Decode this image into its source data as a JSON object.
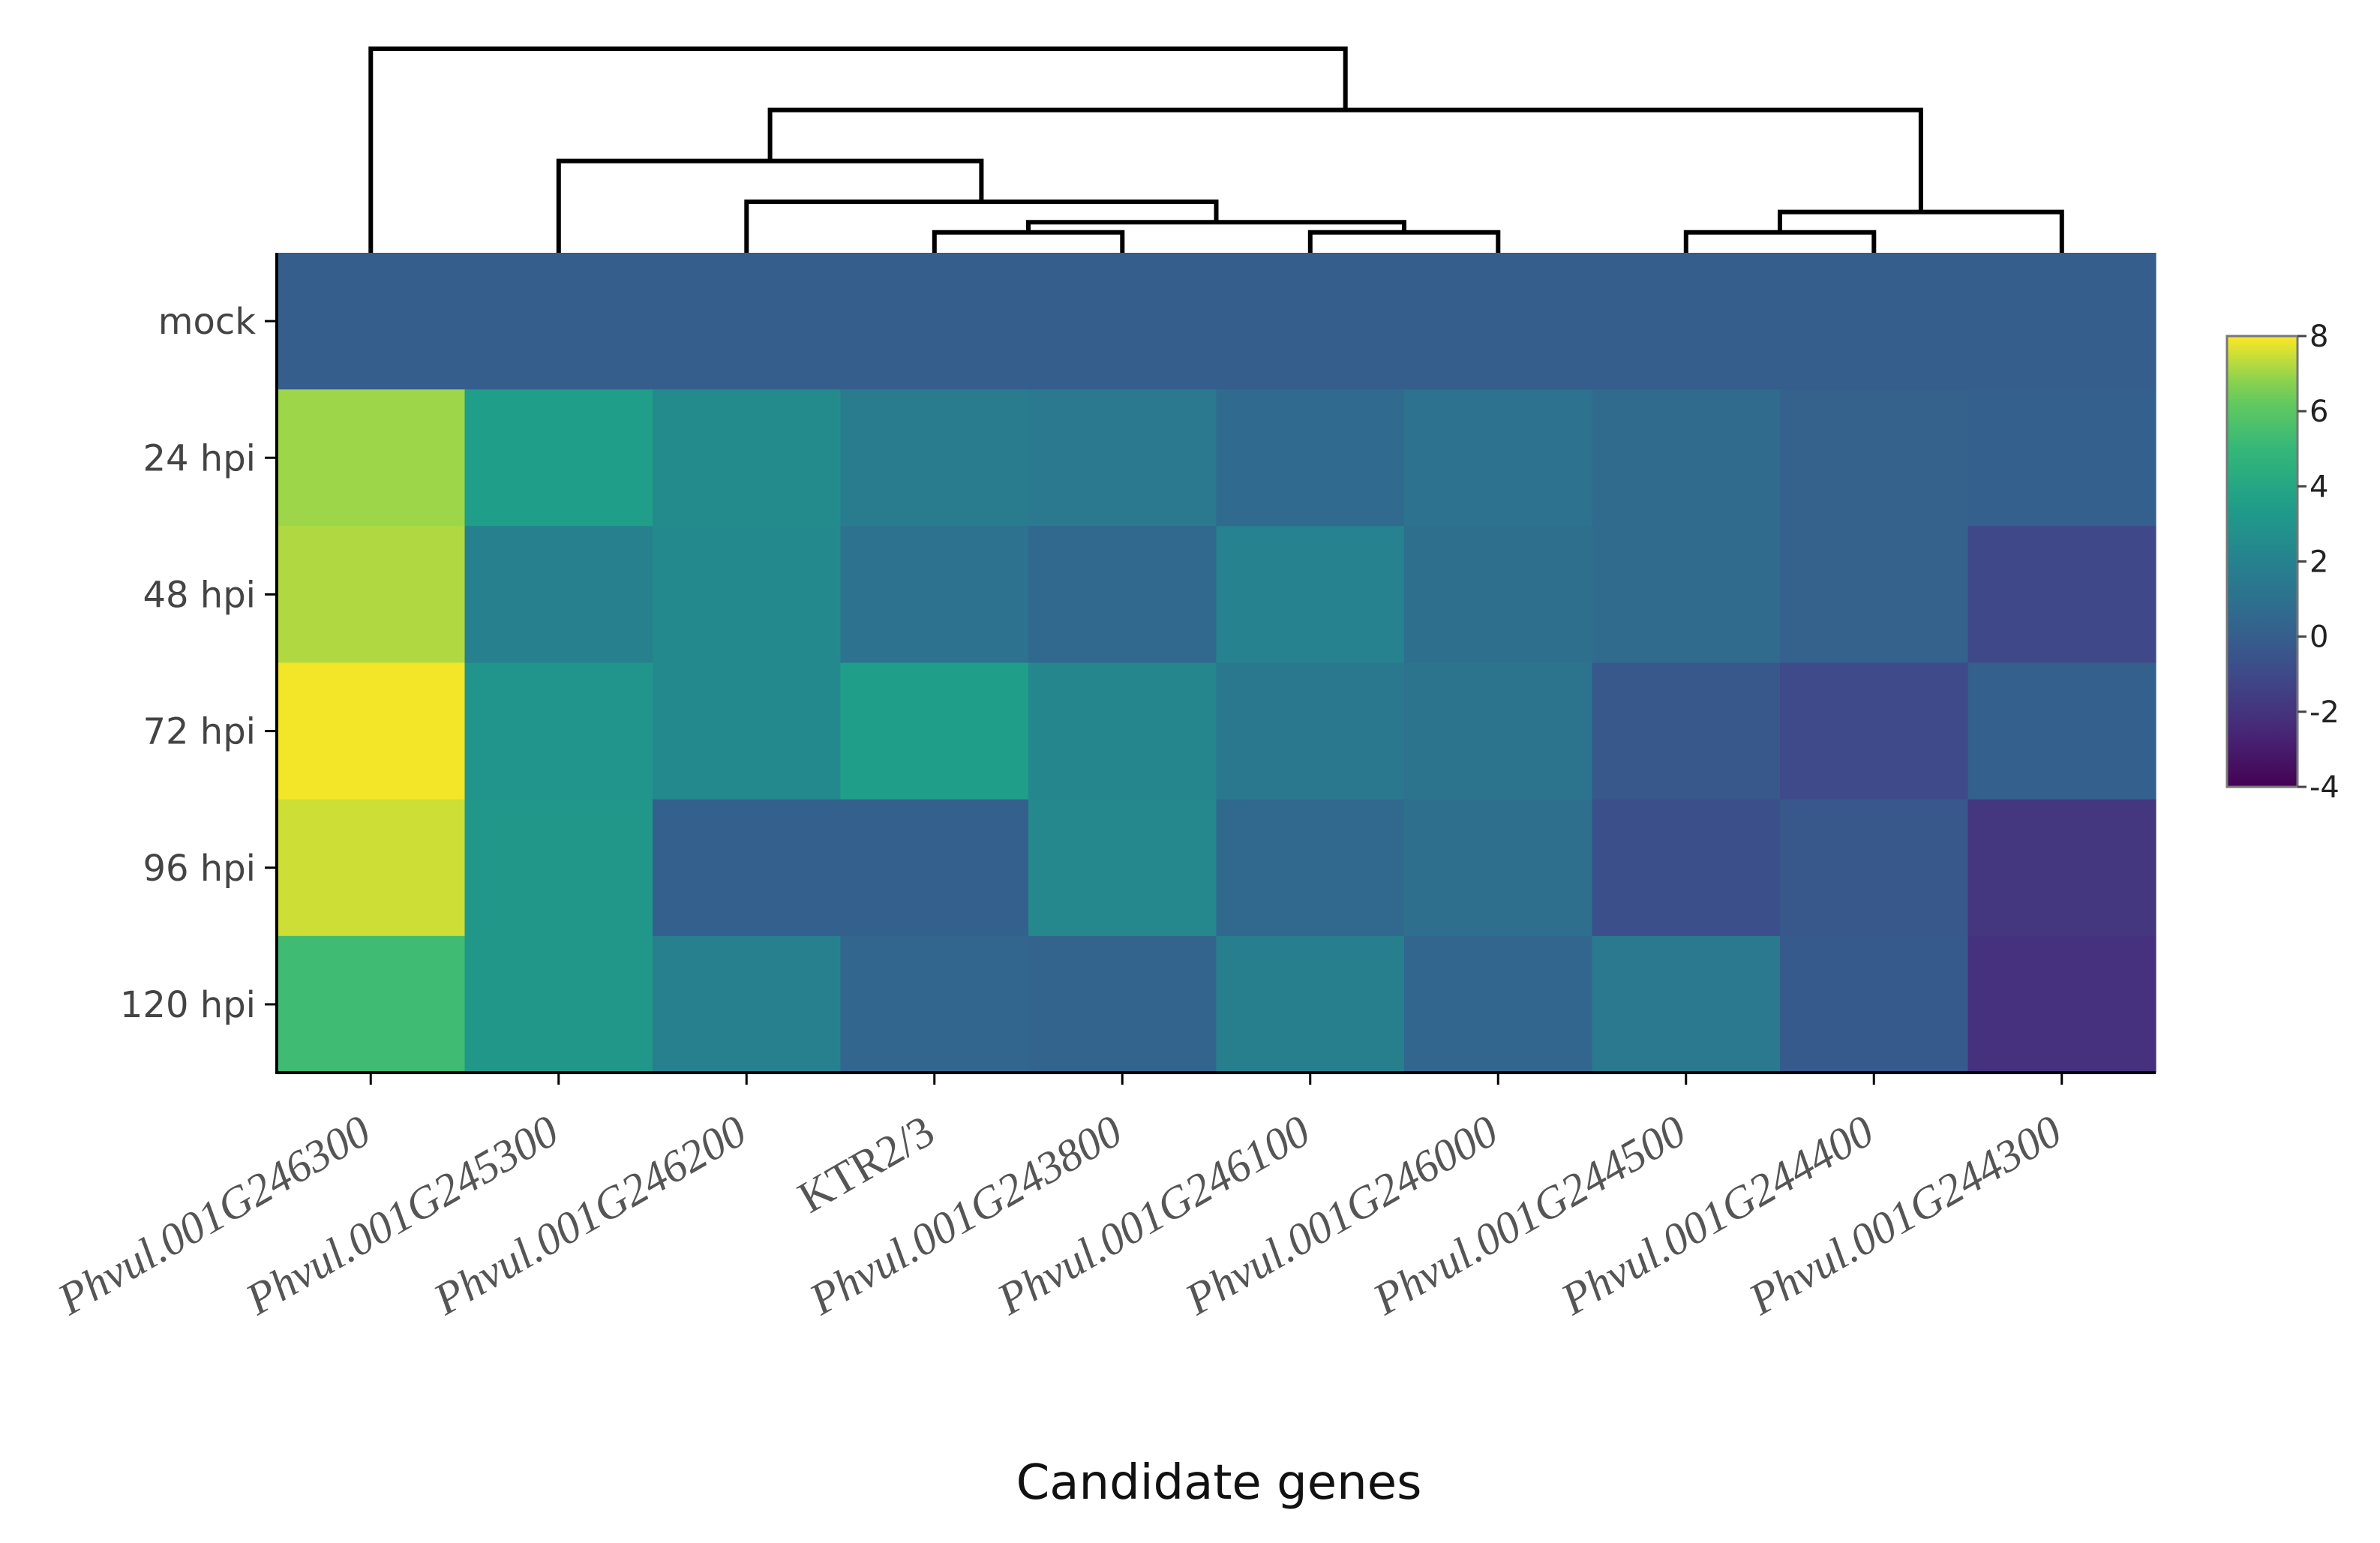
{
  "chart_data": {
    "type": "heatmap",
    "title": "",
    "xlabel": "Candidate genes",
    "ylabel": "",
    "rows": [
      "mock",
      "24 hpi",
      "48 hpi",
      "72 hpi",
      "96 hpi",
      "120 hpi"
    ],
    "columns": [
      "Phvul.001G246300",
      "Phvul.001G245300",
      "Phvul.001G246200",
      "KTR2/3",
      "Phvul.001G243800",
      "Phvul.001G246100",
      "Phvul.001G246000",
      "Phvul.001G244500",
      "Phvul.001G244400",
      "Phvul.001G244300"
    ],
    "italic_columns": [
      true,
      true,
      true,
      false,
      true,
      true,
      true,
      true,
      true,
      true
    ],
    "values": [
      [
        0,
        0,
        0,
        0,
        0,
        0,
        0,
        0,
        0,
        0
      ],
      [
        7,
        3.5,
        2.5,
        1.6,
        1.5,
        0.6,
        1.1,
        0.7,
        0.2,
        0.1
      ],
      [
        7.2,
        1.9,
        2.4,
        1.1,
        0.5,
        2.0,
        0.9,
        0.7,
        0.2,
        -1.1
      ],
      [
        7.9,
        3.0,
        2.4,
        3.5,
        2.2,
        1.4,
        1.2,
        -0.3,
        -1.0,
        0.1
      ],
      [
        7.5,
        3.1,
        0.1,
        0.1,
        2.3,
        0.5,
        0.9,
        -0.7,
        -0.3,
        -1.9
      ],
      [
        5.3,
        3.1,
        1.9,
        0.4,
        0.3,
        1.8,
        0.4,
        1.5,
        -0.2,
        -2.1
      ]
    ],
    "colorbar": {
      "min": -4,
      "max": 8,
      "ticks": [
        -4,
        -2,
        0,
        2,
        4,
        6,
        8
      ],
      "colorscale": "viridis"
    },
    "dendrogram": {
      "type": "column",
      "merges": [
        [
          3,
          4,
          0.1
        ],
        [
          5,
          6,
          0.1
        ],
        [
          7,
          8,
          0.1
        ],
        [
          -1,
          -2,
          0.15
        ],
        [
          2,
          -4,
          0.25
        ],
        [
          -3,
          9,
          0.2
        ],
        [
          1,
          -5,
          0.45
        ],
        [
          -7,
          -6,
          0.7
        ],
        [
          0,
          -8,
          1.0
        ]
      ]
    }
  }
}
